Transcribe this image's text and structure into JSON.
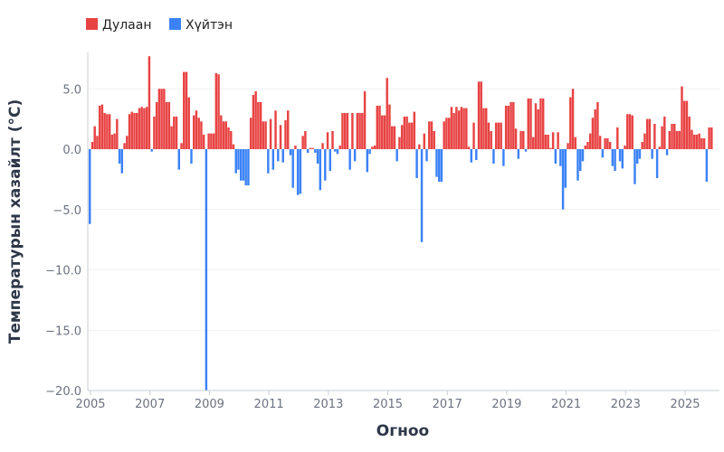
{
  "chart_data": {
    "type": "bar",
    "xlabel": "Огноо",
    "ylabel": "Температурын хазайлт (°C)",
    "ylim": [
      -20,
      8
    ],
    "xlim": [
      2005,
      2026
    ],
    "grid": true,
    "legend_position": "top-left",
    "legend": [
      {
        "name": "Дулаан",
        "color": "#e84343"
      },
      {
        "name": "Хүйтэн",
        "color": "#3b82f6"
      }
    ],
    "y_ticks": [
      "5.0",
      "0.0",
      "−5.0",
      "−10.0",
      "−15.0",
      "−20.0"
    ],
    "y_tick_values": [
      5,
      0,
      -5,
      -10,
      -15,
      -20
    ],
    "x_ticks": [
      "2005",
      "2007",
      "2009",
      "2011",
      "2013",
      "2015",
      "2017",
      "2019",
      "2021",
      "2023",
      "2025"
    ],
    "x_tick_values": [
      2005,
      2007,
      2009,
      2011,
      2013,
      2015,
      2017,
      2019,
      2021,
      2023,
      2025
    ],
    "monthly_values_by_year": {
      "2005": [
        -6.2,
        0.6,
        1.9,
        1.1,
        3.6,
        3.7,
        3.0,
        2.9,
        2.9,
        1.2,
        1.3,
        2.5
      ],
      "2006": [
        -1.2,
        -2.0,
        0.5,
        1.1,
        2.9,
        3.1,
        3.0,
        3.0,
        3.4,
        3.5,
        3.4,
        3.5
      ],
      "2007": [
        7.7,
        -0.2,
        2.7,
        3.9,
        5.0,
        5.0,
        5.0,
        3.9,
        3.9,
        1.9,
        2.7,
        2.7
      ],
      "2008": [
        -1.7,
        0.5,
        6.4,
        6.4,
        4.3,
        -1.2,
        2.8,
        3.2,
        2.6,
        2.3,
        1.2,
        -20.0
      ],
      "2009": [
        1.3,
        1.3,
        1.3,
        6.3,
        6.2,
        2.8,
        2.3,
        2.3,
        1.8,
        1.5,
        0.4,
        -2.0
      ],
      "2010": [
        -1.7,
        -2.6,
        -2.6,
        -3.0,
        -3.0,
        2.6,
        4.5,
        4.8,
        3.9,
        3.9,
        2.3,
        2.3
      ],
      "2011": [
        -2.0,
        2.5,
        -1.7,
        3.2,
        -1.0,
        2.0,
        -1.1,
        2.4,
        3.2,
        -0.5,
        -3.2,
        0.3
      ],
      "2012": [
        -3.8,
        -3.7,
        1.1,
        1.5,
        -0.3,
        0.1,
        0.1,
        -0.3,
        -1.2,
        -3.4,
        0.5,
        -2.6
      ],
      "2013": [
        1.4,
        -1.8,
        1.5,
        -0.2,
        -0.4,
        0.3,
        3.0,
        3.0,
        3.0,
        -1.7,
        3.0,
        -1.0
      ],
      "2014": [
        3.0,
        3.0,
        3.0,
        4.8,
        -1.9,
        -0.4,
        0.2,
        0.3,
        3.6,
        3.6,
        2.8,
        2.8
      ],
      "2015": [
        5.9,
        3.7,
        1.9,
        1.9,
        -1.0,
        1.0,
        2.0,
        2.7,
        2.7,
        2.2,
        2.2,
        3.1
      ],
      "2016": [
        -2.4,
        0.4,
        -7.7,
        1.3,
        -1.0,
        2.3,
        2.3,
        1.5,
        -2.3,
        -2.7,
        -2.7,
        2.3
      ],
      "2017": [
        2.6,
        2.6,
        3.5,
        3.0,
        3.5,
        3.2,
        3.5,
        3.4,
        3.4,
        0.2,
        -1.1,
        2.2
      ],
      "2018": [
        -0.9,
        5.6,
        5.6,
        3.4,
        3.4,
        2.2,
        1.5,
        -1.2,
        2.2,
        2.2,
        2.2,
        -1.4
      ],
      "2019": [
        3.6,
        3.6,
        3.9,
        3.9,
        1.7,
        -0.8,
        1.5,
        1.5,
        -0.2,
        4.2,
        4.2,
        1.0
      ],
      "2020": [
        3.8,
        3.3,
        4.2,
        4.2,
        1.2,
        1.2,
        0.1,
        1.4,
        -1.2,
        1.4,
        -1.4,
        -5.0
      ],
      "2021": [
        -3.2,
        0.5,
        4.3,
        5.0,
        1.0,
        -2.6,
        -1.8,
        -1.0,
        0.3,
        0.6,
        1.3,
        2.6
      ],
      "2022": [
        3.3,
        3.9,
        1.1,
        -0.7,
        0.9,
        0.9,
        0.6,
        -1.4,
        -1.8,
        1.8,
        -1.0,
        -1.6
      ],
      "2023": [
        0.3,
        2.9,
        2.9,
        2.8,
        -2.9,
        -1.2,
        -0.8,
        0.6,
        1.3,
        2.5,
        2.5,
        -0.8
      ],
      "2024": [
        2.1,
        -2.4,
        0.2,
        1.9,
        2.7,
        -0.5,
        1.5,
        2.1,
        2.1,
        1.5,
        1.5,
        5.2
      ],
      "2025": [
        4.0,
        4.0,
        2.7,
        1.6,
        1.2,
        1.2,
        1.3,
        0.9,
        0.9,
        -2.7,
        1.8,
        1.8
      ]
    }
  }
}
